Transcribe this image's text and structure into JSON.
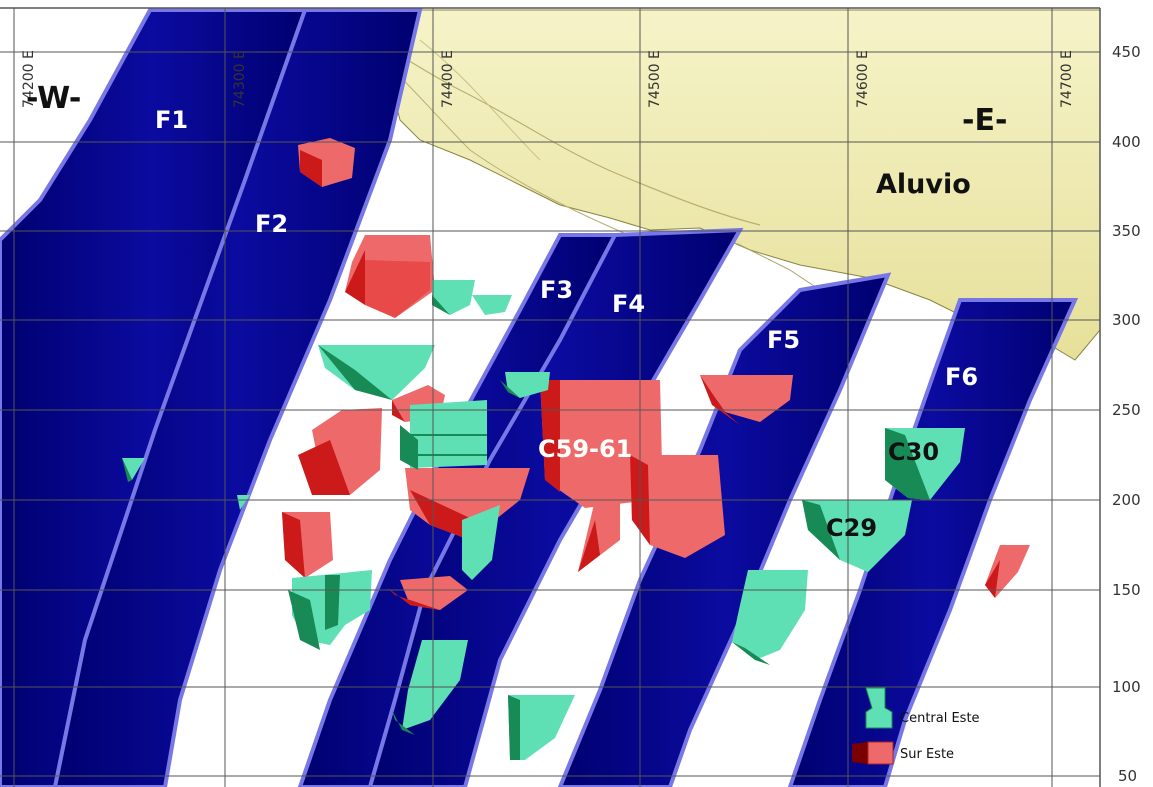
{
  "section": {
    "west_label": "-W-",
    "east_label": "-E-",
    "x_ticks": [
      "74200 E",
      "74300 E",
      "74400 E",
      "74500 E",
      "74600 E",
      "74700 E"
    ],
    "y_ticks": [
      "450",
      "400",
      "350",
      "300",
      "250",
      "200",
      "150",
      "100",
      "50"
    ],
    "faults": [
      "F1",
      "F2",
      "F3",
      "F4",
      "F5",
      "F6"
    ],
    "alluvium_label": "Aluvio",
    "bodies": [
      "C59-61",
      "C30",
      "C29"
    ],
    "legend": {
      "central": "Central Este",
      "sur": "Sur Este"
    }
  },
  "colors": {
    "fault_fill": "#00008c",
    "fault_edge": "#7777e6",
    "alluvium": "#f4f0b8",
    "central_este": "#5fe0b4",
    "sur_este": "#ee6a6a",
    "grid": "#555555"
  }
}
